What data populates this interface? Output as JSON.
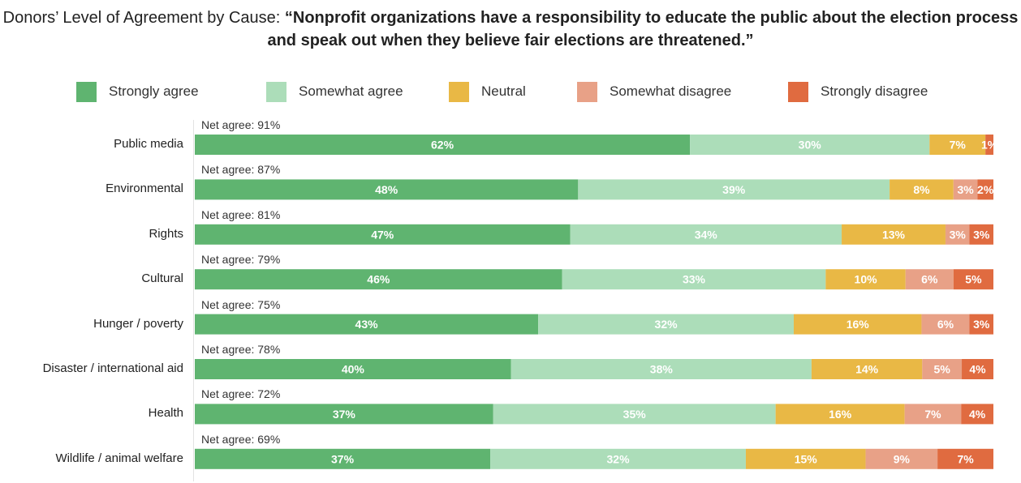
{
  "chart_data": {
    "type": "bar",
    "orientation": "horizontal",
    "stacked": true,
    "title_plain": "Donors’ Level of Agreement by Cause: ",
    "title_bold": "“Nonprofit organizations have a responsibility to educate the public about the election process and speak out when they believe fair elections are threatened.”",
    "xlabel": "",
    "ylabel": "",
    "xlim": [
      0,
      100
    ],
    "legend_position": "top",
    "grid": false,
    "categories": [
      "Public media",
      "Environmental",
      "Rights",
      "Cultural",
      "Hunger / poverty",
      "Disaster / international aid",
      "Health",
      "Wildlife / animal welfare"
    ],
    "net_agree_labels": [
      "Net agree: 91%",
      "Net agree: 87%",
      "Net agree: 81%",
      "Net agree: 79%",
      "Net agree: 75%",
      "Net agree: 78%",
      "Net agree: 72%",
      "Net agree: 69%"
    ],
    "series": [
      {
        "name": "Strongly agree",
        "color": "#5fb470",
        "values": [
          62,
          48,
          47,
          46,
          43,
          40,
          37,
          37
        ]
      },
      {
        "name": "Somewhat agree",
        "color": "#acddb9",
        "values": [
          30,
          39,
          34,
          33,
          32,
          38,
          35,
          32
        ]
      },
      {
        "name": "Neutral",
        "color": "#e9b845",
        "values": [
          7,
          8,
          13,
          10,
          16,
          14,
          16,
          15
        ]
      },
      {
        "name": "Somewhat disagree",
        "color": "#e8a187",
        "values": [
          0,
          3,
          3,
          6,
          6,
          5,
          7,
          9
        ]
      },
      {
        "name": "Strongly disagree",
        "color": "#e06b40",
        "values": [
          1,
          2,
          3,
          5,
          3,
          4,
          4,
          7
        ]
      }
    ],
    "value_suffix": "%"
  }
}
